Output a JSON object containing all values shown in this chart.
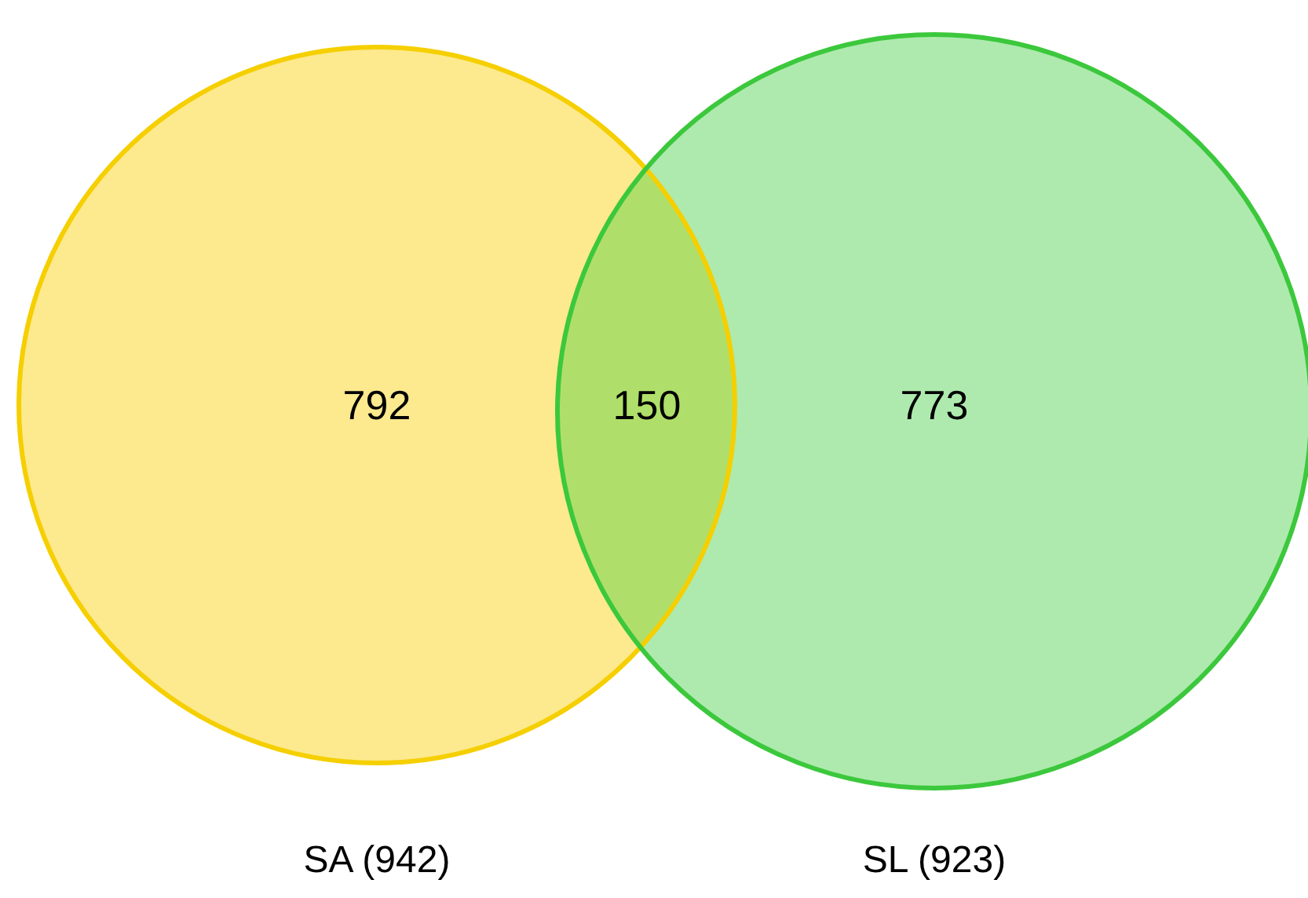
{
  "chart_data": {
    "type": "other",
    "categories": [
      null,
      null,
      null
    ],
    "values": [
      792,
      150,
      773
    ],
    "colors": [
      "#fde98e",
      "#afdf6a",
      "#aeeaae"
    ],
    "annotations": [
      "SA (942)",
      "SL (923)"
    ],
    "data_labels": true
  }
}
